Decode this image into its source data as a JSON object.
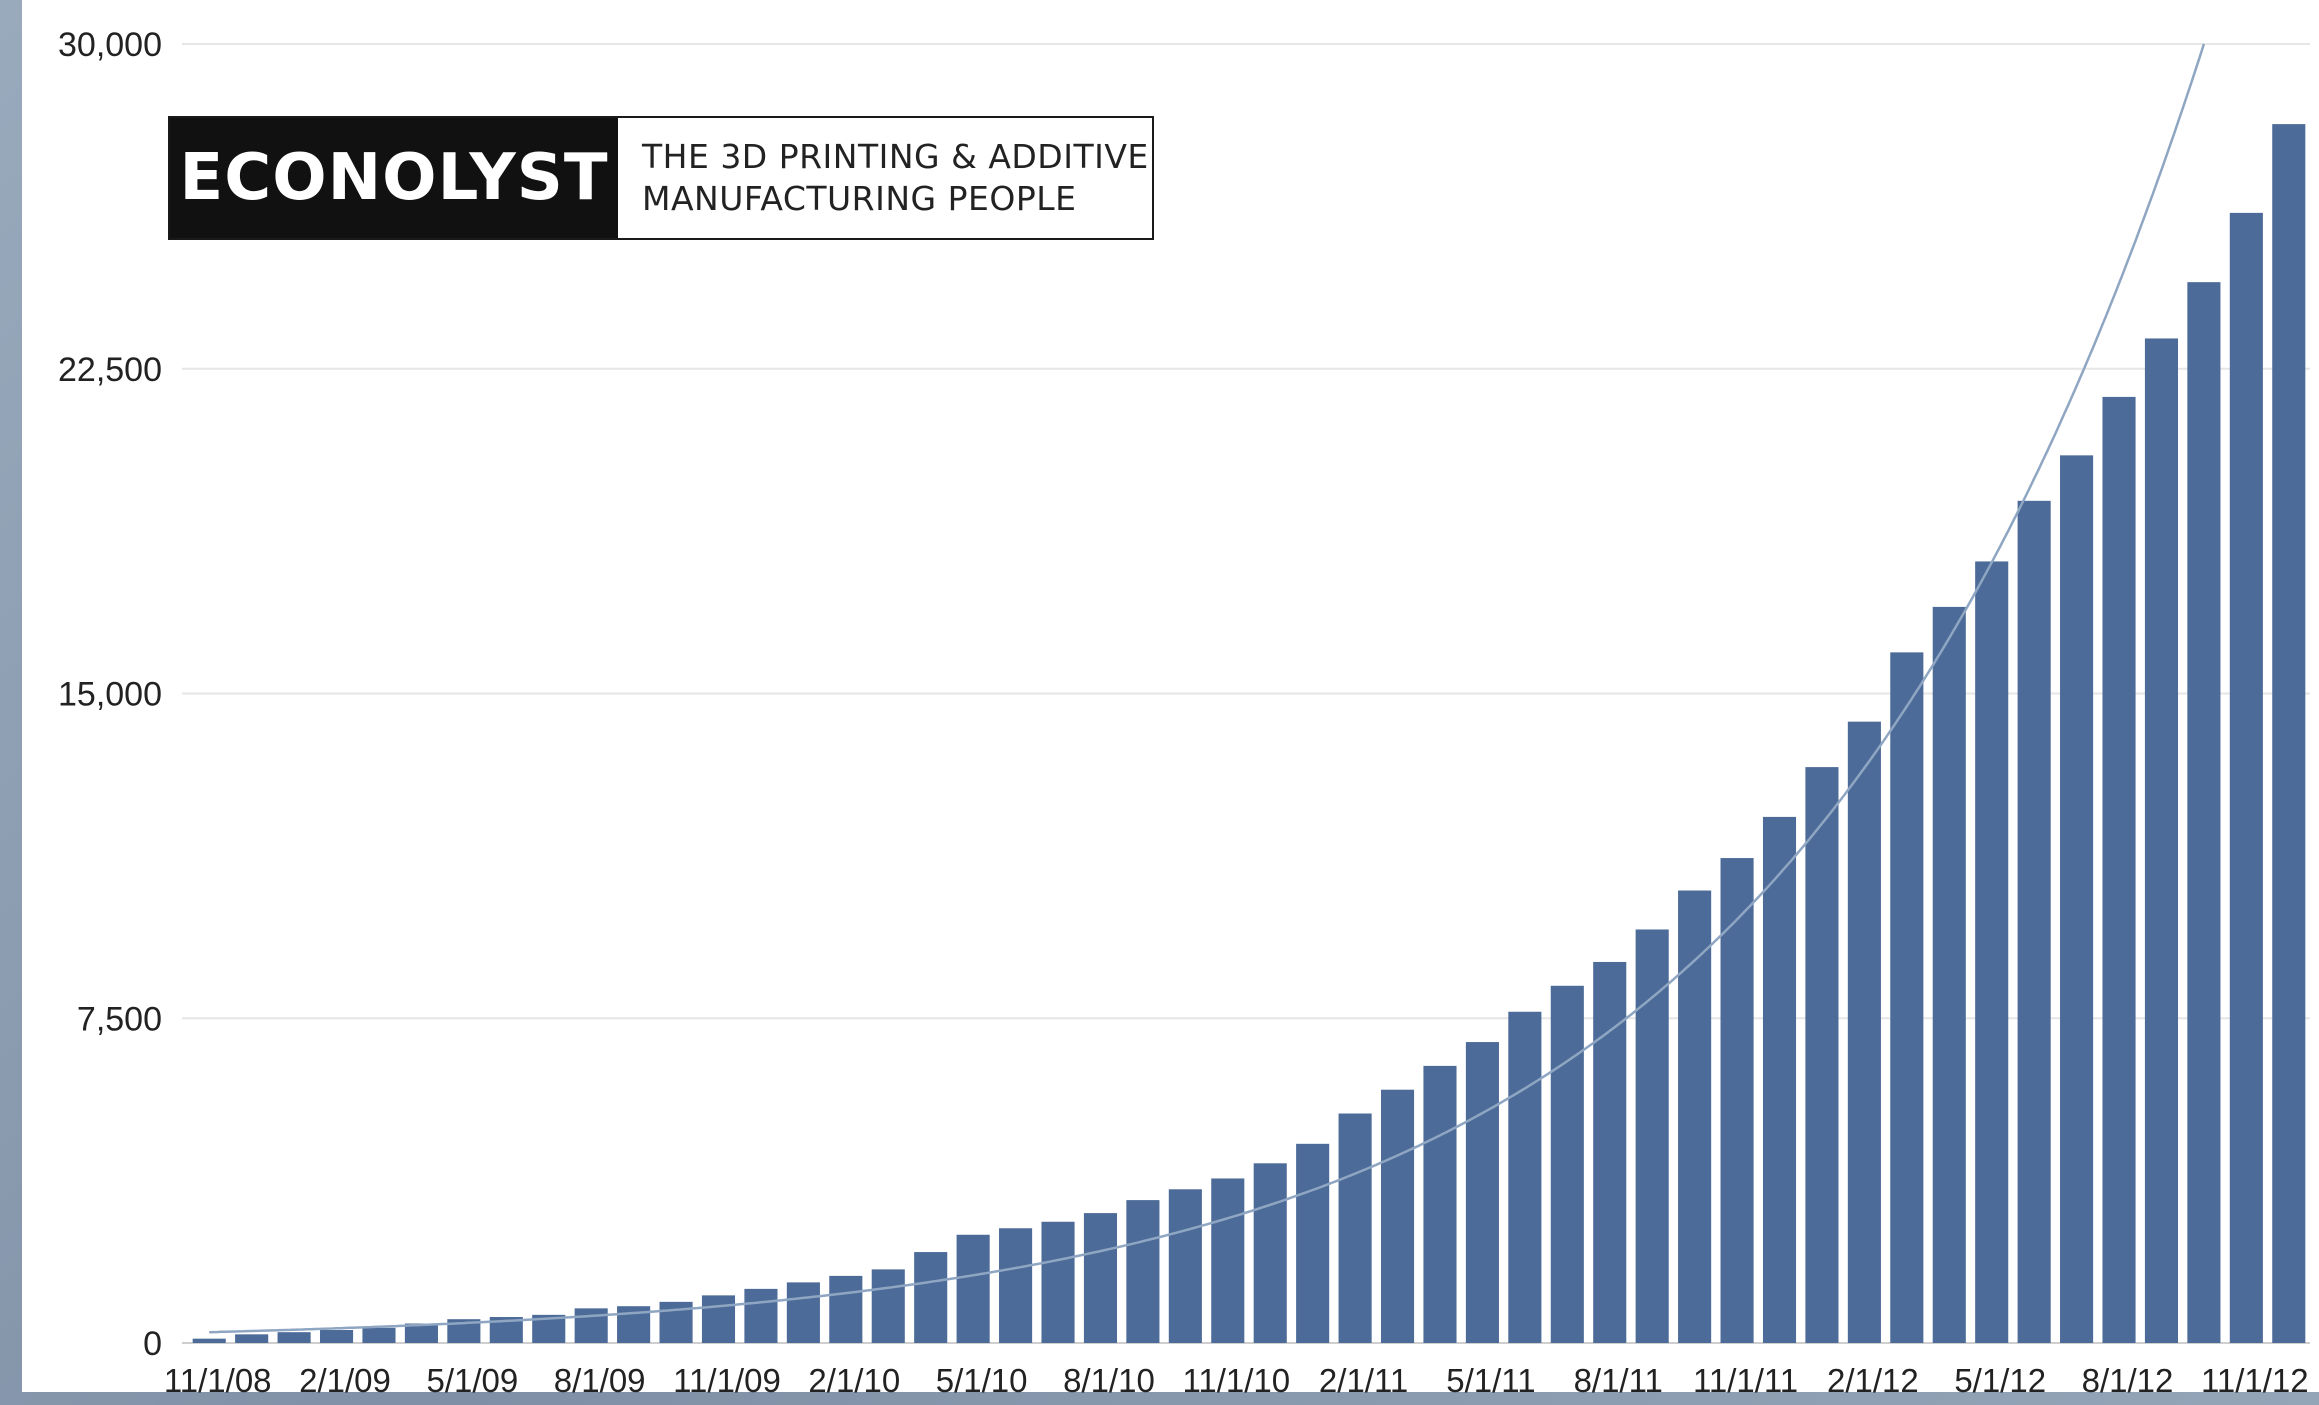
{
  "chart_data": {
    "type": "bar",
    "title": "",
    "xlabel": "",
    "ylabel": "",
    "ylim": [
      0,
      30000
    ],
    "y_ticks": [
      "0",
      "7,500",
      "15,000",
      "22,500",
      "30,000"
    ],
    "y_tick_values": [
      0,
      7500,
      15000,
      22500,
      30000
    ],
    "x_tick_labels": [
      "11/1/08",
      "2/1/09",
      "5/1/09",
      "8/1/09",
      "11/1/09",
      "2/1/10",
      "5/1/10",
      "8/1/10",
      "11/1/10",
      "2/1/11",
      "5/1/11",
      "8/1/11",
      "11/1/11",
      "2/1/12",
      "5/1/12",
      "8/1/12",
      "11/1/12"
    ],
    "grid": "horizontal",
    "bar_color": "#4d6b98",
    "trend_color": "#8fa6c3",
    "categories": [
      "11/1/08",
      "12/1/08",
      "1/1/09",
      "2/1/09",
      "3/1/09",
      "4/1/09",
      "5/1/09",
      "6/1/09",
      "7/1/09",
      "8/1/09",
      "9/1/09",
      "10/1/09",
      "11/1/09",
      "12/1/09",
      "1/1/10",
      "2/1/10",
      "3/1/10",
      "4/1/10",
      "5/1/10",
      "6/1/10",
      "7/1/10",
      "8/1/10",
      "9/1/10",
      "10/1/10",
      "11/1/10",
      "12/1/10",
      "1/1/11",
      "2/1/11",
      "3/1/11",
      "4/1/11",
      "5/1/11",
      "6/1/11",
      "7/1/11",
      "8/1/11",
      "9/1/11",
      "10/1/11",
      "11/1/11",
      "12/1/11",
      "1/1/12",
      "2/1/12",
      "3/1/12",
      "4/1/12",
      "5/1/12",
      "6/1/12",
      "7/1/12",
      "8/1/12",
      "9/1/12",
      "10/1/12",
      "11/1/12",
      "12/1/12"
    ],
    "values": [
      100,
      200,
      250,
      300,
      350,
      450,
      550,
      600,
      650,
      800,
      850,
      950,
      1100,
      1250,
      1400,
      1550,
      1700,
      2100,
      2500,
      2650,
      2800,
      3000,
      3300,
      3550,
      3800,
      4150,
      4600,
      5300,
      5850,
      6400,
      6950,
      7650,
      8250,
      8800,
      9550,
      10450,
      11200,
      12150,
      13300,
      14350,
      15950,
      17000,
      18050,
      19450,
      20500,
      21850,
      23200,
      24500,
      26100,
      28150
    ],
    "trend": {
      "type": "exponential",
      "start_value": 250,
      "end_value": 30000,
      "end_category": "10/1/12"
    }
  },
  "logo": {
    "word": "ECONOLYST",
    "tagline_1": "THE 3D PRINTING & ADDITIVE",
    "tagline_2": "MANUFACTURING  PEOPLE"
  }
}
